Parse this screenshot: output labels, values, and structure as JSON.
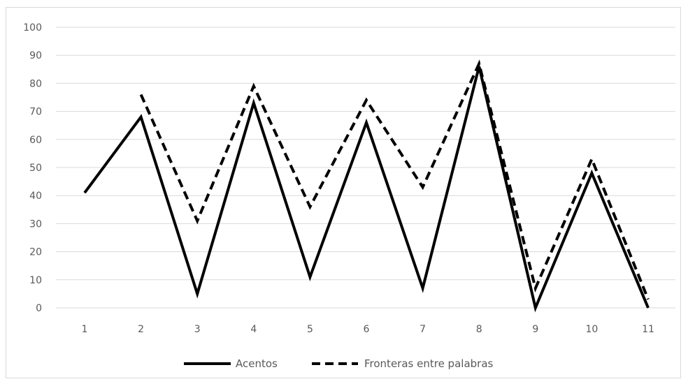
{
  "chart_data": {
    "type": "line",
    "title": "",
    "xlabel": "",
    "ylabel": "",
    "x": [
      1,
      2,
      3,
      4,
      5,
      6,
      7,
      8,
      9,
      10,
      11
    ],
    "x_tick_labels": [
      "1",
      "2",
      "3",
      "4",
      "5",
      "6",
      "7",
      "8",
      "9",
      "10",
      "11"
    ],
    "ylim": [
      0,
      100
    ],
    "y_ticks": [
      0,
      10,
      20,
      30,
      40,
      50,
      60,
      70,
      80,
      90,
      100
    ],
    "y_tick_labels": [
      "0",
      "10",
      "20",
      "30",
      "40",
      "50",
      "60",
      "70",
      "80",
      "90",
      "100"
    ],
    "grid": true,
    "legend_position": "bottom",
    "series": [
      {
        "name": "Acentos",
        "style": "solid",
        "color": "#000000",
        "values": [
          41,
          68,
          5,
          73,
          11,
          66,
          7,
          86,
          0,
          48,
          0
        ]
      },
      {
        "name": "Fronteras entre palabras",
        "style": "dashed",
        "color": "#000000",
        "values": [
          null,
          76,
          31,
          79,
          36,
          74,
          43,
          87,
          7,
          53,
          3
        ]
      }
    ]
  }
}
